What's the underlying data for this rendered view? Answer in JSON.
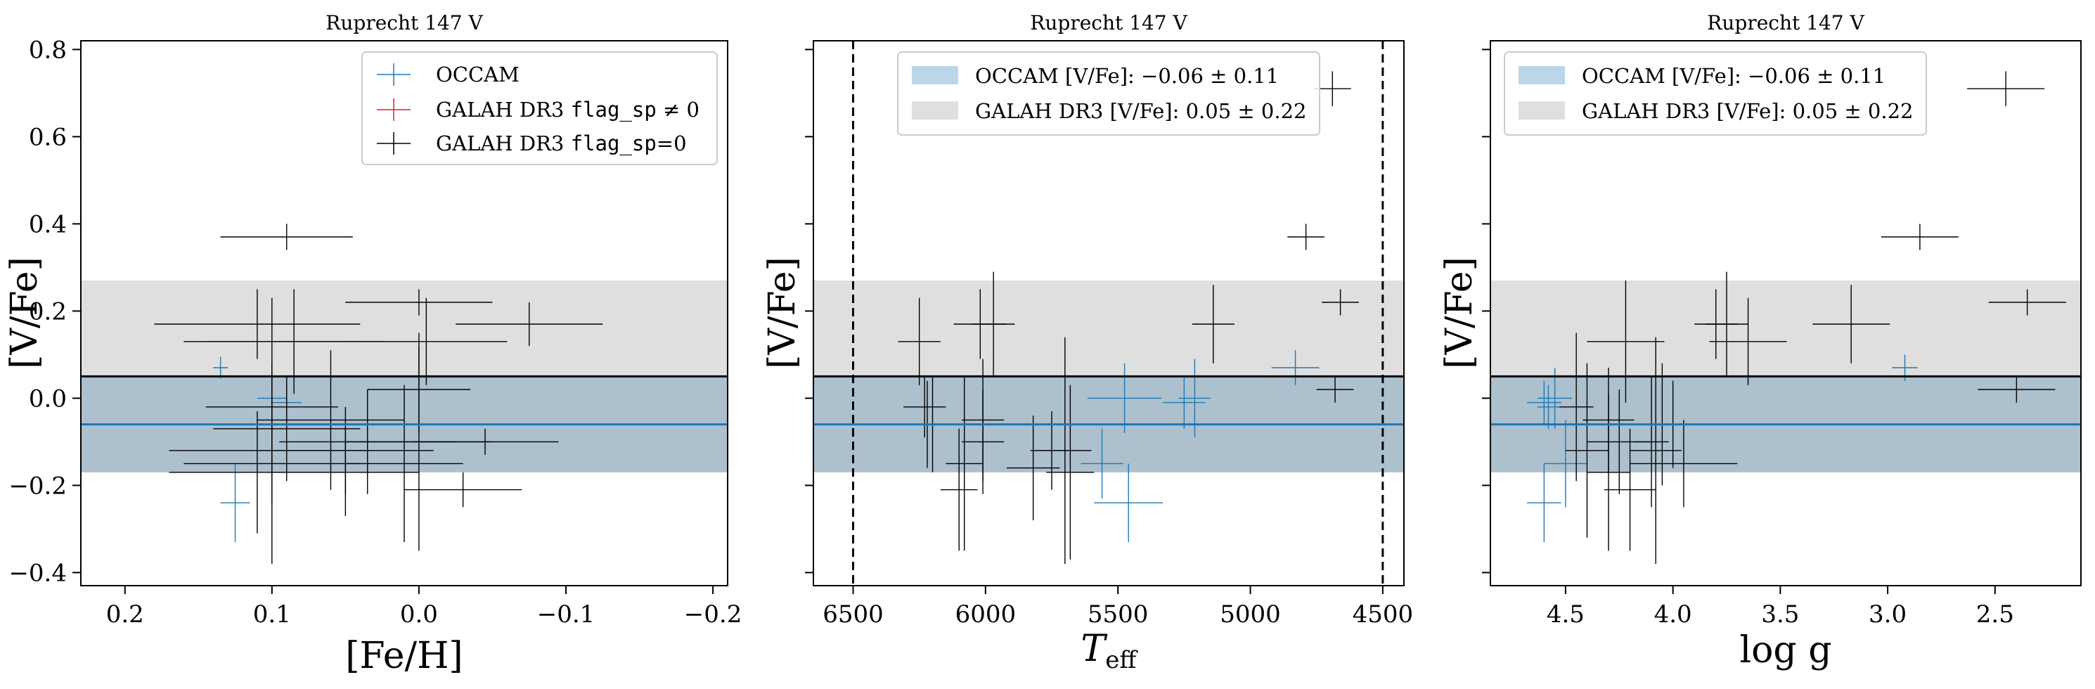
{
  "chart_data": [
    {
      "type": "scatter",
      "title": "Ruprecht 147 V",
      "xlabel": "[Fe/H]",
      "ylabel": "[V/Fe]",
      "xlim": [
        0.23,
        -0.21
      ],
      "ylim": [
        -0.43,
        0.82
      ],
      "x_ticks": [
        0.2,
        0.1,
        0.0,
        -0.1,
        -0.2
      ],
      "x_tick_labels": [
        "0.2",
        "0.1",
        "0.0",
        "−0.1",
        "−0.2"
      ],
      "y_ticks": [
        -0.4,
        -0.2,
        0.0,
        0.2,
        0.4,
        0.6,
        0.8
      ],
      "y_tick_labels": [
        "−0.4",
        "−0.2",
        "0.0",
        "0.2",
        "0.4",
        "0.6",
        "0.8"
      ],
      "show_y_tick_labels": true,
      "legend": {
        "placement": "top-right",
        "type": "markers",
        "entries": [
          {
            "label": "OCCAM",
            "color": "#1f77b4"
          },
          {
            "label_pre": "GALAH DR3 ",
            "label_code": "flag_sp",
            "label_post": " ≠ 0",
            "color": "#d62728"
          },
          {
            "label_pre": "GALAH DR3 ",
            "label_code": "flag_sp",
            "label_post": "=0",
            "color": "#000000"
          }
        ]
      },
      "series": [
        {
          "name": "OCCAM",
          "color": "#1f77b4",
          "points": [
            {
              "x": 0.135,
              "y": 0.07,
              "xerr": 0.005,
              "yerr": 0.025
            },
            {
              "x": 0.125,
              "y": -0.24,
              "xerr": 0.01,
              "yerr": 0.09
            },
            {
              "x": 0.1,
              "y": 0.0,
              "xerr": 0.01,
              "yerr": 0.05
            },
            {
              "x": 0.09,
              "y": -0.01,
              "xerr": 0.01,
              "yerr": 0.04
            }
          ]
        },
        {
          "name": "GALAH DR3 flag_sp=0",
          "color": "#000000",
          "points": [
            {
              "x": 0.09,
              "y": 0.37,
              "xerr": 0.045,
              "yerr": 0.03
            },
            {
              "x": 0.11,
              "y": 0.17,
              "xerr": 0.07,
              "yerr": 0.08
            },
            {
              "x": 0.1,
              "y": 0.13,
              "xerr": 0.06,
              "yerr": 0.1
            },
            {
              "x": 0.085,
              "y": 0.13,
              "xerr": 0.06,
              "yerr": 0.12
            },
            {
              "x": 0.0,
              "y": 0.22,
              "xerr": 0.05,
              "yerr": 0.03
            },
            {
              "x": -0.005,
              "y": 0.13,
              "xerr": 0.055,
              "yerr": 0.1
            },
            {
              "x": -0.075,
              "y": 0.17,
              "xerr": 0.05,
              "yerr": 0.05
            },
            {
              "x": 0.0,
              "y": 0.02,
              "xerr": 0.035,
              "yerr": 0.1
            },
            {
              "x": 0.1,
              "y": -0.02,
              "xerr": 0.045,
              "yerr": 0.1
            },
            {
              "x": 0.1,
              "y": -0.06,
              "xerr": 0.07,
              "yerr": 0.12
            },
            {
              "x": 0.09,
              "y": -0.07,
              "xerr": 0.05,
              "yerr": 0.12
            },
            {
              "x": 0.06,
              "y": -0.05,
              "xerr": 0.05,
              "yerr": 0.16
            },
            {
              "x": 0.05,
              "y": -0.12,
              "xerr": 0.06,
              "yerr": 0.1
            },
            {
              "x": 0.035,
              "y": -0.1,
              "xerr": 0.06,
              "yerr": 0.12
            },
            {
              "x": 0.01,
              "y": -0.15,
              "xerr": 0.04,
              "yerr": 0.18
            },
            {
              "x": 0.0,
              "y": -0.1,
              "xerr": 0.05,
              "yerr": 0.25
            },
            {
              "x": -0.03,
              "y": -0.21,
              "xerr": 0.04,
              "yerr": 0.04
            },
            {
              "x": -0.045,
              "y": -0.1,
              "xerr": 0.05,
              "yerr": 0.03
            },
            {
              "x": 0.1,
              "y": -0.15,
              "xerr": 0.06,
              "yerr": 0.23
            },
            {
              "x": 0.1,
              "y": -0.12,
              "xerr": 0.07,
              "yerr": 0.12
            },
            {
              "x": 0.11,
              "y": -0.17,
              "xerr": 0.06,
              "yerr": 0.14
            },
            {
              "x": 0.05,
              "y": -0.17,
              "xerr": 0.05,
              "yerr": 0.1
            }
          ]
        }
      ],
      "bands": [
        {
          "lo": -0.17,
          "hi": 0.05,
          "color": "#1f77b4",
          "opacity": 0.3
        },
        {
          "lo": -0.17,
          "hi": 0.27,
          "color": "#808080",
          "opacity": 0.25
        }
      ],
      "hlines": [
        {
          "y": 0.05,
          "color": "#000000",
          "width": 3
        },
        {
          "y": -0.06,
          "color": "#1f77b4",
          "width": 3
        }
      ],
      "vlines": []
    },
    {
      "type": "scatter",
      "title": "Ruprecht 147 V",
      "xlabel_main": "T",
      "xlabel_sub": "eff",
      "ylabel": "[V/Fe]",
      "xlim": [
        6650,
        4420
      ],
      "ylim": [
        -0.43,
        0.82
      ],
      "x_ticks": [
        6500,
        6000,
        5500,
        5000,
        4500
      ],
      "x_tick_labels": [
        "6500",
        "6000",
        "5500",
        "5000",
        "4500"
      ],
      "y_ticks": [
        -0.4,
        -0.2,
        0.0,
        0.2,
        0.4,
        0.6,
        0.8
      ],
      "y_tick_labels": [],
      "show_y_tick_labels": false,
      "legend": {
        "placement": "top-center",
        "type": "patches",
        "entries": [
          {
            "label": "OCCAM [V/Fe]: −0.06 ± 0.11",
            "color": "#1f77b4"
          },
          {
            "label": "GALAH DR3 [V/Fe]: 0.05 ± 0.22",
            "color": "#808080"
          }
        ]
      },
      "series": [
        {
          "name": "OCCAM",
          "color": "#1f77b4",
          "points": [
            {
              "x": 5475,
              "y": 0.0,
              "xerr": 140,
              "yerr": 0.08
            },
            {
              "x": 5460,
              "y": -0.24,
              "xerr": 130,
              "yerr": 0.09
            },
            {
              "x": 5250,
              "y": -0.01,
              "xerr": 80,
              "yerr": 0.06
            },
            {
              "x": 5210,
              "y": 0.0,
              "xerr": 60,
              "yerr": 0.09
            },
            {
              "x": 4830,
              "y": 0.07,
              "xerr": 90,
              "yerr": 0.04
            },
            {
              "x": 5560,
              "y": -0.15,
              "xerr": 80,
              "yerr": 0.08
            }
          ]
        },
        {
          "name": "GALAH DR3 flag_sp=0",
          "color": "#000000",
          "points": [
            {
              "x": 4690,
              "y": 0.71,
              "xerr": 70,
              "yerr": 0.04
            },
            {
              "x": 4790,
              "y": 0.37,
              "xerr": 70,
              "yerr": 0.03
            },
            {
              "x": 4660,
              "y": 0.22,
              "xerr": 70,
              "yerr": 0.03
            },
            {
              "x": 4680,
              "y": 0.02,
              "xerr": 70,
              "yerr": 0.03
            },
            {
              "x": 5140,
              "y": 0.17,
              "xerr": 80,
              "yerr": 0.09
            },
            {
              "x": 6250,
              "y": 0.13,
              "xerr": 80,
              "yerr": 0.1
            },
            {
              "x": 6020,
              "y": 0.17,
              "xerr": 100,
              "yerr": 0.08
            },
            {
              "x": 5970,
              "y": 0.17,
              "xerr": 80,
              "yerr": 0.12
            },
            {
              "x": 6230,
              "y": -0.02,
              "xerr": 80,
              "yerr": 0.07
            },
            {
              "x": 6220,
              "y": -0.06,
              "xerr": 80,
              "yerr": 0.1
            },
            {
              "x": 6200,
              "y": -0.06,
              "xerr": 90,
              "yerr": 0.11
            },
            {
              "x": 6010,
              "y": -0.05,
              "xerr": 80,
              "yerr": 0.14
            },
            {
              "x": 6010,
              "y": -0.1,
              "xerr": 80,
              "yerr": 0.12
            },
            {
              "x": 6080,
              "y": -0.15,
              "xerr": 70,
              "yerr": 0.2
            },
            {
              "x": 6100,
              "y": -0.21,
              "xerr": 70,
              "yerr": 0.14
            },
            {
              "x": 5750,
              "y": -0.12,
              "xerr": 80,
              "yerr": 0.09
            },
            {
              "x": 5820,
              "y": -0.16,
              "xerr": 100,
              "yerr": 0.12
            },
            {
              "x": 5680,
              "y": -0.17,
              "xerr": 90,
              "yerr": 0.2
            },
            {
              "x": 5700,
              "y": -0.12,
              "xerr": 100,
              "yerr": 0.26
            }
          ]
        }
      ],
      "bands": [
        {
          "lo": -0.17,
          "hi": 0.05,
          "color": "#1f77b4",
          "opacity": 0.3
        },
        {
          "lo": -0.17,
          "hi": 0.27,
          "color": "#808080",
          "opacity": 0.25
        }
      ],
      "hlines": [
        {
          "y": 0.05,
          "color": "#000000",
          "width": 3
        },
        {
          "y": -0.06,
          "color": "#1f77b4",
          "width": 3
        }
      ],
      "vlines": [
        {
          "x": 6500,
          "color": "#000000",
          "dashed": true
        },
        {
          "x": 4500,
          "color": "#000000",
          "dashed": true
        }
      ]
    },
    {
      "type": "scatter",
      "title": "Ruprecht 147 V",
      "xlabel": "log g",
      "ylabel": "[V/Fe]",
      "xlim": [
        4.85,
        2.1
      ],
      "ylim": [
        -0.43,
        0.82
      ],
      "x_ticks": [
        4.5,
        4.0,
        3.5,
        3.0,
        2.5
      ],
      "x_tick_labels": [
        "4.5",
        "4.0",
        "3.5",
        "3.0",
        "2.5"
      ],
      "y_ticks": [
        -0.4,
        -0.2,
        0.0,
        0.2,
        0.4,
        0.6,
        0.8
      ],
      "y_tick_labels": [],
      "show_y_tick_labels": false,
      "legend": {
        "placement": "top-left",
        "type": "patches",
        "entries": [
          {
            "label": "OCCAM [V/Fe]: −0.06 ± 0.11",
            "color": "#1f77b4"
          },
          {
            "label": "GALAH DR3 [V/Fe]: 0.05 ± 0.22",
            "color": "#808080"
          }
        ]
      },
      "series": [
        {
          "name": "OCCAM",
          "color": "#1f77b4",
          "points": [
            {
              "x": 4.6,
              "y": -0.01,
              "xerr": 0.08,
              "yerr": 0.05
            },
            {
              "x": 4.58,
              "y": -0.02,
              "xerr": 0.05,
              "yerr": 0.05
            },
            {
              "x": 4.6,
              "y": -0.24,
              "xerr": 0.08,
              "yerr": 0.09
            },
            {
              "x": 4.5,
              "y": -0.15,
              "xerr": 0.1,
              "yerr": 0.1
            },
            {
              "x": 2.92,
              "y": 0.07,
              "xerr": 0.06,
              "yerr": 0.03
            },
            {
              "x": 4.55,
              "y": 0.0,
              "xerr": 0.08,
              "yerr": 0.07
            }
          ]
        },
        {
          "name": "GALAH DR3 flag_sp=0",
          "color": "#000000",
          "points": [
            {
              "x": 2.45,
              "y": 0.71,
              "xerr": 0.18,
              "yerr": 0.04
            },
            {
              "x": 2.85,
              "y": 0.37,
              "xerr": 0.18,
              "yerr": 0.03
            },
            {
              "x": 2.35,
              "y": 0.22,
              "xerr": 0.18,
              "yerr": 0.03
            },
            {
              "x": 2.4,
              "y": 0.02,
              "xerr": 0.18,
              "yerr": 0.03
            },
            {
              "x": 3.17,
              "y": 0.17,
              "xerr": 0.18,
              "yerr": 0.09
            },
            {
              "x": 3.8,
              "y": 0.17,
              "xerr": 0.1,
              "yerr": 0.08
            },
            {
              "x": 3.75,
              "y": 0.17,
              "xerr": 0.1,
              "yerr": 0.12
            },
            {
              "x": 3.65,
              "y": 0.13,
              "xerr": 0.18,
              "yerr": 0.1
            },
            {
              "x": 4.22,
              "y": 0.13,
              "xerr": 0.18,
              "yerr": 0.14
            },
            {
              "x": 4.45,
              "y": -0.02,
              "xerr": 0.08,
              "yerr": 0.17
            },
            {
              "x": 4.3,
              "y": -0.05,
              "xerr": 0.12,
              "yerr": 0.12
            },
            {
              "x": 4.05,
              "y": -0.06,
              "xerr": 0.15,
              "yerr": 0.14
            },
            {
              "x": 4.0,
              "y": -0.06,
              "xerr": 0.1,
              "yerr": 0.1
            },
            {
              "x": 4.25,
              "y": -0.1,
              "xerr": 0.15,
              "yerr": 0.12
            },
            {
              "x": 4.1,
              "y": -0.1,
              "xerr": 0.08,
              "yerr": 0.15
            },
            {
              "x": 3.95,
              "y": -0.15,
              "xerr": 0.25,
              "yerr": 0.1
            },
            {
              "x": 4.2,
              "y": -0.21,
              "xerr": 0.12,
              "yerr": 0.14
            },
            {
              "x": 4.3,
              "y": -0.17,
              "xerr": 0.1,
              "yerr": 0.18
            },
            {
              "x": 4.08,
              "y": -0.12,
              "xerr": 0.12,
              "yerr": 0.26
            },
            {
              "x": 4.4,
              "y": -0.12,
              "xerr": 0.1,
              "yerr": 0.2
            }
          ]
        }
      ],
      "bands": [
        {
          "lo": -0.17,
          "hi": 0.05,
          "color": "#1f77b4",
          "opacity": 0.3
        },
        {
          "lo": -0.17,
          "hi": 0.27,
          "color": "#808080",
          "opacity": 0.25
        }
      ],
      "hlines": [
        {
          "y": 0.05,
          "color": "#000000",
          "width": 3
        },
        {
          "y": -0.06,
          "color": "#1f77b4",
          "width": 3
        }
      ],
      "vlines": []
    }
  ]
}
